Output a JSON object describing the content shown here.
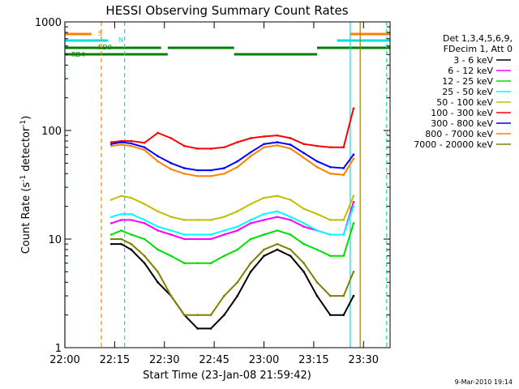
{
  "chart_data": {
    "type": "line",
    "title": "HESSI Observing Summary Count Rates",
    "xlabel": "Start Time (23-Jan-08 21:59:42)",
    "ylabel": "Count Rate (s",
    "ylabel_sup": "-1",
    "ylabel_rest": " detector",
    "ylabel_sup2": "-1",
    "ylabel_end": ")",
    "yscale": "log",
    "ylim": [
      1,
      1000
    ],
    "xlim": [
      "22:00",
      "23:38"
    ],
    "x_ticks": [
      "22:00",
      "22:15",
      "22:30",
      "22:45",
      "23:00",
      "23:15",
      "23:30"
    ],
    "y_ticks": [
      "1",
      "10",
      "100",
      "1000"
    ],
    "legend_header": [
      "Det 1,3,4,5,6,9,",
      "FDecim 1, Att 0"
    ],
    "legend_placement": "right",
    "timestamp": "9-Mar-2010 19:14",
    "flags": {
      "S": {
        "label": "S",
        "color": "#ff8000",
        "on": [
          [
            "22:00",
            "22:08"
          ],
          [
            "23:26",
            "23:38"
          ]
        ]
      },
      "N": {
        "label": "N",
        "color": "#00e0e0",
        "on": [
          [
            "22:00",
            "22:13"
          ],
          [
            "23:22",
            "23:38"
          ]
        ]
      },
      "RD0": {
        "label": "RD0",
        "color": "#008000",
        "on": [
          [
            "22:00",
            "22:29"
          ],
          [
            "22:31",
            "22:51"
          ],
          [
            "23:16",
            "23:38"
          ]
        ]
      },
      "RD4": {
        "label": "RD4",
        "color": "#008000",
        "on": [
          [
            "22:00",
            "22:31"
          ],
          [
            "22:51",
            "23:16"
          ]
        ]
      }
    },
    "vertical_markers": [
      {
        "time": "22:11",
        "color": "#ff8000",
        "style": "dashed"
      },
      {
        "time": "22:18",
        "color": "#00e0e0",
        "style": "dashed"
      },
      {
        "time": "22:00",
        "color": "#00e0e0",
        "style": "solid"
      },
      {
        "time": "23:26",
        "color": "#00e0e0",
        "style": "solid"
      },
      {
        "time": "23:29",
        "color": "#a08000",
        "style": "solid"
      },
      {
        "time": "23:37",
        "color": "#ff8000",
        "style": "dashed"
      },
      {
        "time": "23:37",
        "color": "#00e0e0",
        "style": "dashed"
      }
    ],
    "series": [
      {
        "name": "3 - 6 keV",
        "color": "#000000",
        "x": [
          "22:14",
          "22:17",
          "22:20",
          "22:24",
          "22:28",
          "22:32",
          "22:36",
          "22:40",
          "22:44",
          "22:48",
          "22:52",
          "22:56",
          "23:00",
          "23:04",
          "23:08",
          "23:12",
          "23:16",
          "23:20",
          "23:24",
          "23:27"
        ],
        "y": [
          9,
          9,
          8,
          6,
          4,
          3,
          2,
          1.5,
          1.5,
          2,
          3,
          5,
          7,
          8,
          7,
          5,
          3,
          2,
          2,
          3
        ]
      },
      {
        "name": "6 - 12 keV",
        "color": "#ff00ff",
        "x": [
          "22:14",
          "22:17",
          "22:20",
          "22:24",
          "22:28",
          "22:32",
          "22:36",
          "22:40",
          "22:44",
          "22:48",
          "22:52",
          "22:56",
          "23:00",
          "23:04",
          "23:08",
          "23:12",
          "23:16",
          "23:20",
          "23:24",
          "23:27"
        ],
        "y": [
          14,
          15,
          15,
          14,
          12,
          11,
          10,
          10,
          10,
          11,
          12,
          14,
          15,
          16,
          15,
          13,
          12,
          11,
          11,
          22
        ]
      },
      {
        "name": "12 - 25 keV",
        "color": "#00e000",
        "x": [
          "22:14",
          "22:17",
          "22:20",
          "22:24",
          "22:28",
          "22:32",
          "22:36",
          "22:40",
          "22:44",
          "22:48",
          "22:52",
          "22:56",
          "23:00",
          "23:04",
          "23:08",
          "23:12",
          "23:16",
          "23:20",
          "23:24",
          "23:27"
        ],
        "y": [
          11,
          12,
          11,
          10,
          8,
          7,
          6,
          6,
          6,
          7,
          8,
          10,
          11,
          12,
          11,
          9,
          8,
          7,
          7,
          14
        ]
      },
      {
        "name": "25 - 50 keV",
        "color": "#00ffff",
        "x": [
          "22:14",
          "22:17",
          "22:20",
          "22:24",
          "22:28",
          "22:32",
          "22:36",
          "22:40",
          "22:44",
          "22:48",
          "22:52",
          "22:56",
          "23:00",
          "23:04",
          "23:08",
          "23:12",
          "23:16",
          "23:20",
          "23:24",
          "23:27"
        ],
        "y": [
          16,
          17,
          17,
          15,
          13,
          12,
          11,
          11,
          11,
          12,
          13,
          15,
          17,
          18,
          16,
          14,
          12,
          11,
          11,
          20
        ]
      },
      {
        "name": "50 - 100 keV",
        "color": "#c0c000",
        "x": [
          "22:14",
          "22:17",
          "22:20",
          "22:24",
          "22:28",
          "22:32",
          "22:36",
          "22:40",
          "22:44",
          "22:48",
          "22:52",
          "22:56",
          "23:00",
          "23:04",
          "23:08",
          "23:12",
          "23:16",
          "23:20",
          "23:24",
          "23:27"
        ],
        "y": [
          23,
          25,
          24,
          21,
          18,
          16,
          15,
          15,
          15,
          16,
          18,
          21,
          24,
          25,
          23,
          19,
          17,
          15,
          15,
          25
        ]
      },
      {
        "name": "100 - 300 keV",
        "color": "#ff0000",
        "x": [
          "22:14",
          "22:17",
          "22:20",
          "22:24",
          "22:28",
          "22:32",
          "22:36",
          "22:40",
          "22:44",
          "22:48",
          "22:52",
          "22:56",
          "23:00",
          "23:04",
          "23:08",
          "23:12",
          "23:16",
          "23:20",
          "23:24",
          "23:27"
        ],
        "y": [
          78,
          80,
          80,
          77,
          95,
          85,
          72,
          68,
          68,
          70,
          78,
          85,
          88,
          90,
          85,
          75,
          72,
          70,
          70,
          160
        ]
      },
      {
        "name": "300 - 800 keV",
        "color": "#0000ff",
        "x": [
          "22:14",
          "22:17",
          "22:20",
          "22:24",
          "22:28",
          "22:32",
          "22:36",
          "22:40",
          "22:44",
          "22:48",
          "22:52",
          "22:56",
          "23:00",
          "23:04",
          "23:08",
          "23:12",
          "23:16",
          "23:20",
          "23:24",
          "23:27"
        ],
        "y": [
          75,
          78,
          76,
          70,
          58,
          50,
          45,
          43,
          43,
          45,
          52,
          63,
          75,
          78,
          74,
          62,
          52,
          46,
          45,
          60
        ]
      },
      {
        "name": "800 - 7000 keV",
        "color": "#ff8000",
        "x": [
          "22:14",
          "22:17",
          "22:20",
          "22:24",
          "22:28",
          "22:32",
          "22:36",
          "22:40",
          "22:44",
          "22:48",
          "22:52",
          "22:56",
          "23:00",
          "23:04",
          "23:08",
          "23:12",
          "23:16",
          "23:20",
          "23:24",
          "23:27"
        ],
        "y": [
          72,
          74,
          72,
          66,
          52,
          44,
          40,
          38,
          38,
          40,
          46,
          58,
          70,
          73,
          68,
          56,
          46,
          40,
          39,
          55
        ]
      },
      {
        "name": "7000 - 20000 keV",
        "color": "#808000",
        "x": [
          "22:14",
          "22:17",
          "22:20",
          "22:24",
          "22:28",
          "22:32",
          "22:36",
          "22:40",
          "22:44",
          "22:48",
          "22:52",
          "22:56",
          "23:00",
          "23:04",
          "23:08",
          "23:12",
          "23:16",
          "23:20",
          "23:24",
          "23:27"
        ],
        "y": [
          10,
          10,
          9,
          7,
          5,
          3,
          2,
          2,
          2,
          3,
          4,
          6,
          8,
          9,
          8,
          6,
          4,
          3,
          3,
          5
        ]
      }
    ]
  }
}
